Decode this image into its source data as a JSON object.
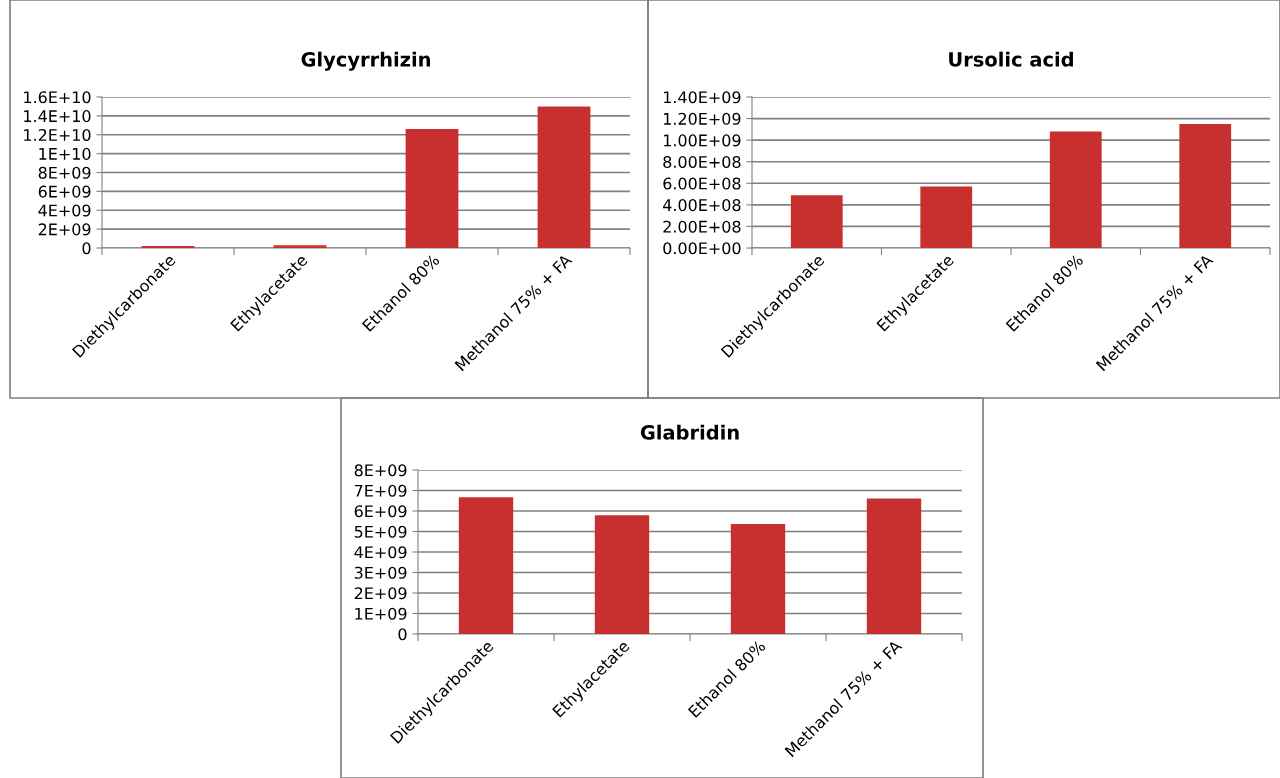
{
  "chart_data": [
    {
      "type": "bar",
      "title": "Glycyrrhizin",
      "categories": [
        "Diethylcarbonate",
        "Ethylacetate",
        "Ethanol 80%",
        "Methanol 75% + FA"
      ],
      "values": [
        200000000.0,
        300000000.0,
        12600000000.0,
        15000000000.0
      ],
      "color": "#c83030",
      "ylim": [
        0,
        16000000000.0
      ],
      "yticks": [
        {
          "value": 0,
          "label": "0"
        },
        {
          "value": 2000000000.0,
          "label": "2E+09"
        },
        {
          "value": 4000000000.0,
          "label": "4E+09"
        },
        {
          "value": 6000000000.0,
          "label": "6E+09"
        },
        {
          "value": 8000000000.0,
          "label": "8E+09"
        },
        {
          "value": 10000000000.0,
          "label": "1E+10"
        },
        {
          "value": 12000000000.0,
          "label": "1.2E+10"
        },
        {
          "value": 14000000000.0,
          "label": "1.4E+10"
        },
        {
          "value": 16000000000.0,
          "label": "1.6E+10"
        }
      ],
      "grid": "y"
    },
    {
      "type": "bar",
      "title": "Ursolic acid",
      "categories": [
        "Diethylcarbonate",
        "Ethylacetate",
        "Ethanol 80%",
        "Methanol 75% + FA"
      ],
      "values": [
        490000000.0,
        570000000.0,
        1080000000.0,
        1150000000.0
      ],
      "color": "#c83030",
      "ylim": [
        0,
        1400000000.0
      ],
      "yticks": [
        {
          "value": 0,
          "label": "0.00E+00"
        },
        {
          "value": 200000000.0,
          "label": "2.00E+08"
        },
        {
          "value": 400000000.0,
          "label": "4.00E+08"
        },
        {
          "value": 600000000.0,
          "label": "6.00E+08"
        },
        {
          "value": 800000000.0,
          "label": "8.00E+08"
        },
        {
          "value": 1000000000.0,
          "label": "1.00E+09"
        },
        {
          "value": 1200000000.0,
          "label": "1.20E+09"
        },
        {
          "value": 1400000000.0,
          "label": "1.40E+09"
        }
      ],
      "grid": "y"
    },
    {
      "type": "bar",
      "title": "Glabridin",
      "categories": [
        "Diethylcarbonate",
        "Ethylacetate",
        "Ethanol 80%",
        "Methanol 75% + FA"
      ],
      "values": [
        6670000000.0,
        5790000000.0,
        5370000000.0,
        6610000000.0
      ],
      "color": "#c83030",
      "ylim": [
        0,
        8000000000.0
      ],
      "yticks": [
        {
          "value": 0,
          "label": "0"
        },
        {
          "value": 1000000000.0,
          "label": "1E+09"
        },
        {
          "value": 2000000000.0,
          "label": "2E+09"
        },
        {
          "value": 3000000000.0,
          "label": "3E+09"
        },
        {
          "value": 4000000000.0,
          "label": "4E+09"
        },
        {
          "value": 5000000000.0,
          "label": "5E+09"
        },
        {
          "value": 6000000000.0,
          "label": "6E+09"
        },
        {
          "value": 7000000000.0,
          "label": "7E+09"
        },
        {
          "value": 8000000000.0,
          "label": "8E+09"
        }
      ],
      "grid": "y"
    }
  ]
}
